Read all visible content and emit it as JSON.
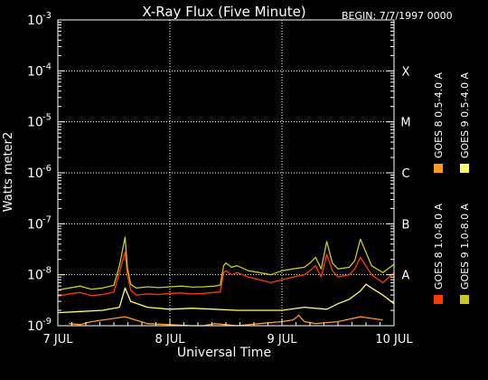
{
  "title": "X-Ray Flux (Five Minute)",
  "begin_label": "BEGIN: 7/7/1997 0000",
  "xlabel": "Universal Time",
  "ylabel": "Watts meter2",
  "chart_data": {
    "type": "line",
    "title": "X-Ray Flux (Five Minute)",
    "xlabel": "Universal Time",
    "ylabel": "Watts meter2",
    "y_scale": "log",
    "ylim": [
      1e-09,
      0.001
    ],
    "xlim_days": [
      0,
      3
    ],
    "x_tick_labels": [
      "7 JUL",
      "8 JUL",
      "9 JUL",
      "10 JUL"
    ],
    "y_tick_exponents": [
      -9,
      -8,
      -7,
      -6,
      -5,
      -4,
      -3
    ],
    "flare_classes": [
      "A",
      "B",
      "C",
      "M",
      "X"
    ],
    "grid": true,
    "legend_placement": "right (vertical)",
    "series": [
      {
        "name": "GOES 8 1.0-8.0 A",
        "color": "#ff3a00",
        "x": [
          0,
          0.1,
          0.2,
          0.3,
          0.4,
          0.5,
          0.55,
          0.6,
          0.62,
          0.65,
          0.7,
          0.8,
          0.9,
          1.0,
          1.1,
          1.2,
          1.3,
          1.4,
          1.45,
          1.48,
          1.5,
          1.55,
          1.6,
          1.7,
          1.8,
          1.9,
          2.0,
          2.1,
          2.2,
          2.25,
          2.3,
          2.35,
          2.4,
          2.45,
          2.5,
          2.6,
          2.65,
          2.7,
          2.8,
          2.9,
          3.0
        ],
        "y": [
          3.8e-09,
          4.2e-09,
          4.5e-09,
          3.9e-09,
          4.1e-09,
          4.6e-09,
          1.1e-08,
          2.8e-08,
          1e-08,
          5e-09,
          4e-09,
          4.2e-09,
          4.1e-09,
          4.3e-09,
          4.4e-09,
          4.2e-09,
          4.3e-09,
          4.5e-09,
          4.6e-09,
          1.1e-08,
          1.2e-08,
          1e-08,
          1.1e-08,
          9e-09,
          8e-09,
          7e-09,
          8e-09,
          9e-09,
          1e-08,
          1.2e-08,
          1.5e-08,
          9e-09,
          2.5e-08,
          1.2e-08,
          9e-09,
          1e-08,
          1.3e-08,
          2.2e-08,
          1e-08,
          7e-09,
          1.1e-08
        ]
      },
      {
        "name": "GOES 8 0.5-4.0 A",
        "color": "#ff9a1a",
        "x": [
          0.1,
          0.2,
          0.3,
          0.6,
          0.8,
          1.0,
          1.2,
          1.3,
          1.4,
          1.6,
          1.8,
          2.0,
          2.1,
          2.15,
          2.2,
          2.3,
          2.5,
          2.7,
          2.9
        ],
        "y": [
          1.1e-09,
          1.05e-09,
          1.2e-09,
          1.5e-09,
          1.1e-09,
          1.05e-09,
          1e-09,
          1e-09,
          1.1e-09,
          1e-09,
          1.1e-09,
          1.2e-09,
          1.3e-09,
          1.6e-09,
          1.2e-09,
          1.1e-09,
          1.2e-09,
          1.5e-09,
          1.3e-09
        ]
      },
      {
        "name": "GOES 9 0.5-4.0 A",
        "color": "#ffff66",
        "x": [
          0,
          0.2,
          0.4,
          0.55,
          0.6,
          0.65,
          0.8,
          1.0,
          1.2,
          1.4,
          1.6,
          1.8,
          2.0,
          2.2,
          2.4,
          2.5,
          2.6,
          2.7,
          2.75,
          2.8,
          2.9,
          3.0
        ],
        "y": [
          1.8e-09,
          1.9e-09,
          2e-09,
          2.3e-09,
          5.5e-09,
          3e-09,
          2.3e-09,
          2.1e-09,
          2.2e-09,
          2.1e-09,
          2e-09,
          2e-09,
          2e-09,
          2.3e-09,
          2.1e-09,
          2.7e-09,
          3.3e-09,
          4.8e-09,
          6.5e-09,
          5.5e-09,
          4e-09,
          2.7e-09
        ]
      },
      {
        "name": "GOES 9 1.0-8.0 A",
        "color": "#c8c81e",
        "x": [
          0,
          0.1,
          0.2,
          0.3,
          0.4,
          0.5,
          0.55,
          0.6,
          0.62,
          0.65,
          0.7,
          0.8,
          0.9,
          1.0,
          1.1,
          1.2,
          1.3,
          1.4,
          1.45,
          1.48,
          1.5,
          1.55,
          1.6,
          1.7,
          1.8,
          1.9,
          2.0,
          2.1,
          2.2,
          2.25,
          2.3,
          2.35,
          2.4,
          2.45,
          2.5,
          2.6,
          2.65,
          2.7,
          2.8,
          2.9,
          3.0
        ],
        "y": [
          5e-09,
          5.5e-09,
          6e-09,
          5.2e-09,
          5.5e-09,
          6.2e-09,
          1.5e-08,
          5.5e-08,
          1.4e-08,
          6.5e-09,
          5.5e-09,
          5.8e-09,
          5.6e-09,
          5.8e-09,
          6e-09,
          5.7e-09,
          5.8e-09,
          6e-09,
          6.3e-09,
          1.5e-08,
          1.7e-08,
          1.4e-08,
          1.5e-08,
          1.2e-08,
          1.1e-08,
          1e-08,
          1.2e-08,
          1.3e-08,
          1.4e-08,
          1.7e-08,
          2.2e-08,
          1.3e-08,
          4.5e-08,
          1.7e-08,
          1.3e-08,
          1.4e-08,
          1.9e-08,
          5e-08,
          1.5e-08,
          1.1e-08,
          1.6e-08
        ]
      }
    ]
  }
}
